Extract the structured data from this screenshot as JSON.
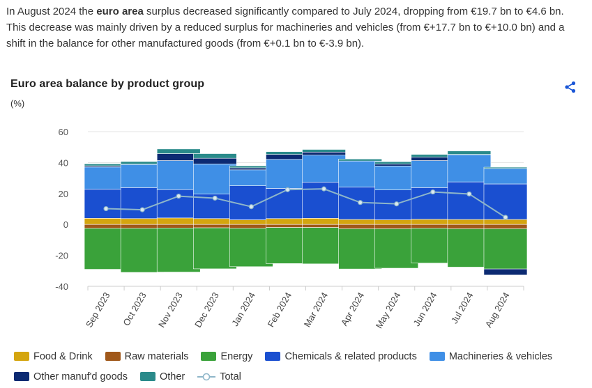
{
  "intro": {
    "part1": "In August 2024 the ",
    "bold": "euro area",
    "part2": " surplus decreased significantly compared to July 2024, dropping from €19.7 bn to €4.6 bn. This decrease was mainly driven by a reduced surplus for machineries and vehicles (from €+17.7 bn to €+10.0 bn) and a shift in the balance for other manufactured goods (from €+0.1 bn to €-3.9 bn)."
  },
  "share_icon": "share-icon",
  "chart_data": {
    "type": "bar",
    "stacked": true,
    "title": "Euro area balance by product group",
    "ylabel": "(%)",
    "xlabel": "",
    "ylim": [
      -40,
      60
    ],
    "yticks": [
      -40,
      -20,
      0,
      20,
      40,
      60
    ],
    "categories": [
      "Sep 2023",
      "Oct 2023",
      "Nov 2023",
      "Dec 2023",
      "Jan 2024",
      "Feb 2024",
      "Mar 2024",
      "Apr 2024",
      "May 2024",
      "Jun 2024",
      "Jul 2024",
      "Aug 2024"
    ],
    "series": [
      {
        "name": "Food & Drink",
        "color": "#d4a50f",
        "values": [
          4.0,
          3.8,
          4.2,
          3.8,
          3.0,
          3.8,
          4.0,
          3.2,
          3.0,
          3.3,
          3.2,
          3.2
        ]
      },
      {
        "name": "Raw materials",
        "color": "#a0581a",
        "values": [
          -2.5,
          -2.5,
          -2.3,
          -2.2,
          -2.5,
          -2.0,
          -2.0,
          -2.8,
          -2.8,
          -2.5,
          -2.8,
          -2.8
        ]
      },
      {
        "name": "Energy",
        "color": "#3aa23a",
        "values": [
          -26.5,
          -28.5,
          -28.5,
          -26.5,
          -24.8,
          -23.3,
          -23.5,
          -26.0,
          -25.5,
          -22.5,
          -24.8,
          -26.0
        ]
      },
      {
        "name": "Chemicals & related products",
        "color": "#1a4fd0",
        "values": [
          18.8,
          20.0,
          18.3,
          15.8,
          22.0,
          19.5,
          23.3,
          21.0,
          19.3,
          20.5,
          24.3,
          23.0
        ]
      },
      {
        "name": "Machineries & vehicles",
        "color": "#3f8fe6",
        "values": [
          14.3,
          15.0,
          18.8,
          19.5,
          10.3,
          18.8,
          17.5,
          16.8,
          15.5,
          17.5,
          17.7,
          10.0
        ]
      },
      {
        "name": "Other manuf'd goods",
        "color": "#0c2a72",
        "values": [
          0.8,
          0.2,
          4.5,
          3.7,
          1.3,
          3.2,
          2.0,
          0.0,
          1.3,
          2.2,
          0.1,
          -3.9
        ]
      },
      {
        "name": "Other",
        "color": "#2a8a8a",
        "values": [
          1.3,
          1.7,
          3.0,
          3.0,
          1.3,
          1.8,
          1.7,
          1.3,
          1.5,
          1.8,
          2.2,
          0.8
        ]
      }
    ],
    "total": {
      "name": "Total",
      "color": "#8eb6c9",
      "values": [
        10.2,
        9.5,
        18.3,
        17.0,
        11.5,
        22.5,
        23.0,
        14.2,
        13.3,
        21.0,
        19.7,
        4.6
      ]
    },
    "legend": "bottom-left",
    "grid": true
  }
}
